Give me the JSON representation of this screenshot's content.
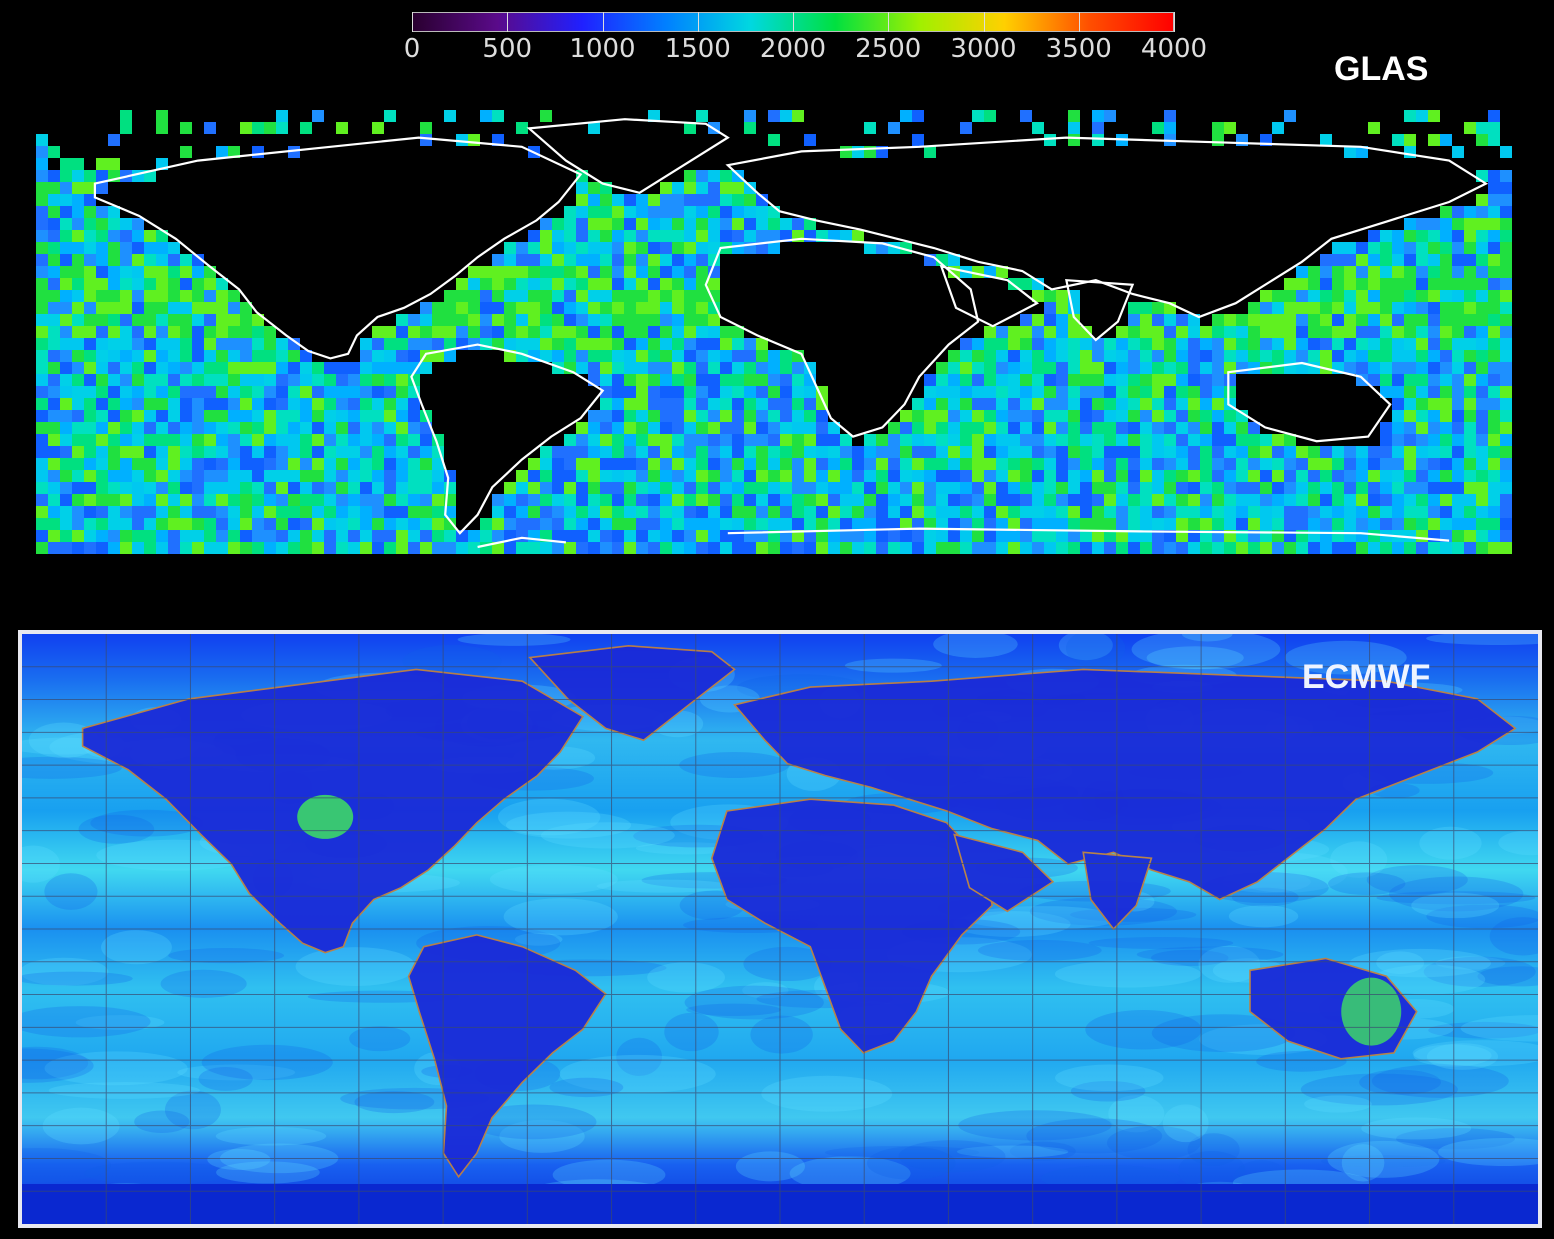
{
  "colorbar": {
    "tick_labels": [
      "0",
      "500",
      "1000",
      "1500",
      "2000",
      "2500",
      "3000",
      "3500",
      "4000"
    ],
    "colors": [
      "#2a0030",
      "#5a0a8a",
      "#2020ff",
      "#0080ff",
      "#00d8e0",
      "#00e040",
      "#a0f000",
      "#ffd000",
      "#ff5000",
      "#ff0000"
    ]
  },
  "glas": {
    "label": "GLAS",
    "coast_color": "#ffffff",
    "land_color": "#000000"
  },
  "ecmwf": {
    "label": "ECMWF",
    "coast_color": "#c08040",
    "grid_color": "#3a4a70"
  }
}
